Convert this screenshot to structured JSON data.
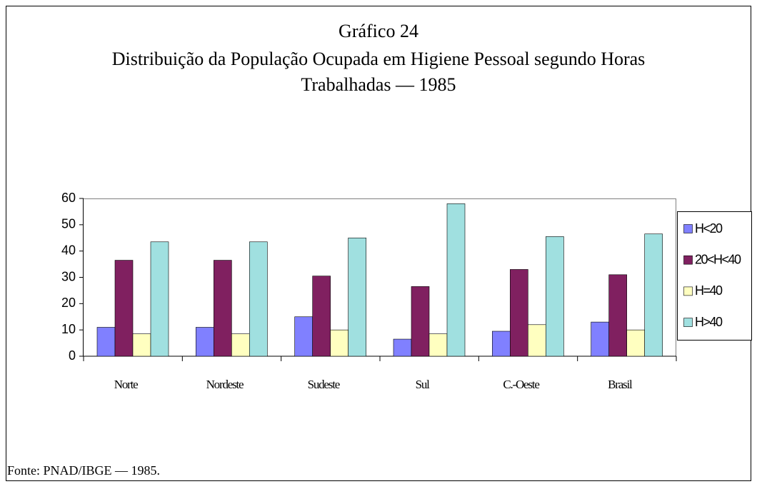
{
  "chart_data": {
    "type": "bar",
    "title": "Gráfico 24",
    "subtitle": [
      "Distribuição da População Ocupada em Higiene Pessoal segundo Horas",
      "Trabalhadas — 1985"
    ],
    "categories": [
      "Norte",
      "Nordeste",
      "Sudeste",
      "Sul",
      "C.-Oeste",
      "Brasil"
    ],
    "series": [
      {
        "name": "H<20",
        "color": "#8080ff",
        "values": [
          11,
          11,
          15,
          6.5,
          9.5,
          13
        ]
      },
      {
        "name": "20<H<40",
        "color": "#802060",
        "values": [
          36.5,
          36.5,
          30.5,
          26.5,
          33,
          31
        ]
      },
      {
        "name": "H=40",
        "color": "#ffffc0",
        "values": [
          8.5,
          8.5,
          10,
          8.5,
          12,
          10
        ]
      },
      {
        "name": "H>40",
        "color": "#a0e0e0",
        "values": [
          43.5,
          43.5,
          45,
          58,
          45.5,
          46.5
        ]
      }
    ],
    "ylim": [
      0,
      60
    ],
    "yticks": [
      0,
      10,
      20,
      30,
      40,
      50,
      60
    ],
    "grid": false,
    "legend": "right",
    "source": "Fonte: PNAD/IBGE — 1985."
  }
}
